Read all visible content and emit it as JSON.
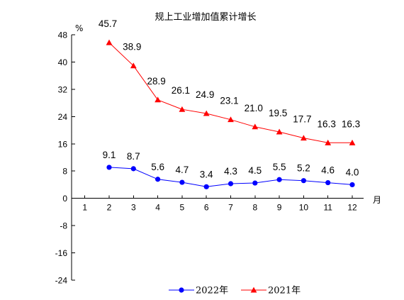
{
  "chart_data": {
    "type": "line",
    "title": "规上工业增加值累计增长",
    "ylabel": "%",
    "xlabel": "月",
    "x": [
      "1",
      "2",
      "3",
      "4",
      "5",
      "6",
      "7",
      "8",
      "9",
      "10",
      "11",
      "12"
    ],
    "yticks": [
      "48",
      "40",
      "32",
      "24",
      "16",
      "8",
      "0",
      "-8",
      "-16",
      "-24"
    ],
    "ylim": [
      -24,
      48
    ],
    "grid": false,
    "legend": "bottom",
    "series": [
      {
        "name": "2022年",
        "color": "#0000ff",
        "marker": "circle",
        "values": [
          null,
          9.1,
          8.7,
          5.6,
          4.7,
          3.4,
          4.3,
          4.5,
          5.5,
          5.2,
          4.6,
          4.0
        ],
        "labels": [
          null,
          "9.1",
          "8.7",
          "5.6",
          "4.7",
          "3.4",
          "4.3",
          "4.5",
          "5.5",
          "5.2",
          "4.6",
          "4.0"
        ]
      },
      {
        "name": "2021年",
        "color": "#ff0000",
        "marker": "triangle",
        "values": [
          null,
          45.7,
          38.9,
          28.9,
          26.1,
          24.9,
          23.1,
          21.0,
          19.5,
          17.7,
          16.3,
          16.3
        ],
        "labels": [
          null,
          "45.7",
          "38.9",
          "28.9",
          "26.1",
          "24.9",
          "23.1",
          "21.0",
          "19.5",
          "17.7",
          "16.3",
          "16.3"
        ]
      }
    ]
  }
}
